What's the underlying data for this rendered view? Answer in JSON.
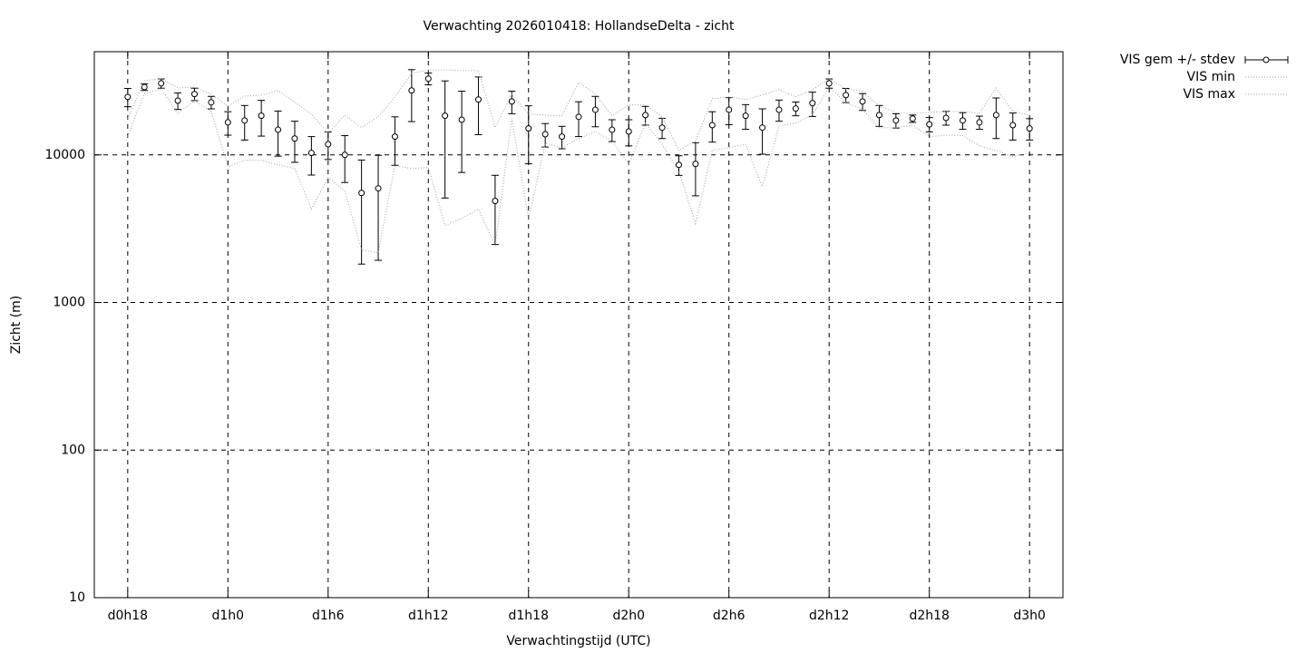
{
  "chart_data": {
    "type": "errorbar-line",
    "title": "Verwachting 2026010418: HollandseDelta - zicht",
    "x_label": "Verwachtingstijd (UTC)",
    "y_label": "Zicht (m)",
    "log_y": true,
    "grid": true,
    "legend_position": "outside-right",
    "xlim": [
      16,
      74
    ],
    "ylim": [
      10,
      50000
    ],
    "xticks": [
      {
        "value": 18,
        "label": "d0h18"
      },
      {
        "value": 24,
        "label": "d1h0"
      },
      {
        "value": 30,
        "label": "d1h6"
      },
      {
        "value": 36,
        "label": "d1h12"
      },
      {
        "value": 42,
        "label": "d1h18"
      },
      {
        "value": 48,
        "label": "d2h0"
      },
      {
        "value": 54,
        "label": "d2h6"
      },
      {
        "value": 60,
        "label": "d2h12"
      },
      {
        "value": 66,
        "label": "d2h18"
      },
      {
        "value": 72,
        "label": "d3h0"
      }
    ],
    "yticks": [
      10,
      100,
      1000,
      10000
    ],
    "x": [
      18,
      19,
      20,
      21,
      22,
      23,
      24,
      25,
      26,
      27,
      28,
      29,
      30,
      31,
      32,
      33,
      34,
      35,
      36,
      37,
      38,
      39,
      40,
      41,
      42,
      43,
      44,
      45,
      46,
      47,
      48,
      49,
      50,
      51,
      52,
      53,
      54,
      55,
      56,
      57,
      58,
      59,
      60,
      61,
      62,
      63,
      64,
      65,
      66,
      67,
      68,
      69,
      70,
      71,
      72
    ],
    "series": [
      {
        "name": "VIS gem +/- stdev",
        "color": "#000000",
        "values": [
          24700,
          28800,
          30500,
          23300,
          25800,
          22700,
          16600,
          17100,
          18400,
          14800,
          12900,
          10300,
          11800,
          10000,
          5520,
          5930,
          13300,
          27300,
          32800,
          18400,
          17300,
          23700,
          4870,
          23000,
          15100,
          13800,
          13300,
          18100,
          20200,
          14800,
          14400,
          18600,
          15300,
          8560,
          8680,
          15900,
          20200,
          18400,
          15300,
          20200,
          20600,
          22400,
          30500,
          25400,
          23000,
          18600,
          17100,
          17600,
          16100,
          17800,
          17100,
          16600,
          18600,
          15900,
          15100
        ],
        "errors": [
          3500,
          1500,
          2200,
          3000,
          2500,
          2200,
          3000,
          4500,
          5000,
          5000,
          4000,
          3000,
          2500,
          3500,
          3700,
          4000,
          4800,
          10500,
          3000,
          13300,
          9700,
          10000,
          2400,
          4000,
          6400,
          2500,
          2300,
          4800,
          4700,
          2500,
          2900,
          2700,
          2400,
          1300,
          3400,
          3700,
          4200,
          3500,
          5200,
          3300,
          2200,
          4200,
          2200,
          2800,
          3000,
          3000,
          1900,
          1000,
          1800,
          1900,
          2200,
          1700,
          5700,
          3300,
          2500
        ]
      },
      {
        "name": "VIS min",
        "color": "#a0a0a0",
        "values": [
          13300,
          26100,
          28000,
          19100,
          23300,
          19700,
          8320,
          9190,
          9190,
          8560,
          8090,
          4290,
          7030,
          5680,
          2270,
          2170,
          8440,
          8090,
          8210,
          3320,
          3720,
          4290,
          2440,
          17600,
          3720,
          12000,
          11200,
          12900,
          14400,
          12400,
          8690,
          16400,
          11800,
          7760,
          3420,
          10700,
          11200,
          11800,
          6100,
          15700,
          16400,
          18600,
          28800,
          22700,
          20300,
          15300,
          15300,
          15900,
          13300,
          13600,
          13500,
          11500,
          10700,
          9730,
          10300
        ]
      },
      {
        "name": "VIS max",
        "color": "#a0a0a0",
        "values": [
          17600,
          31800,
          32800,
          28400,
          28800,
          25800,
          21400,
          25000,
          25400,
          27300,
          22700,
          18900,
          14000,
          18600,
          15300,
          18100,
          24700,
          35600,
          37700,
          37700,
          37200,
          37200,
          15300,
          25800,
          18900,
          18600,
          18400,
          31000,
          25800,
          18400,
          21800,
          21800,
          18100,
          10700,
          12400,
          24000,
          24700,
          23700,
          25400,
          27700,
          24700,
          27700,
          32800,
          28000,
          26900,
          21400,
          19400,
          19100,
          19400,
          19700,
          19700,
          19100,
          28400,
          19700,
          18600
        ]
      }
    ]
  }
}
